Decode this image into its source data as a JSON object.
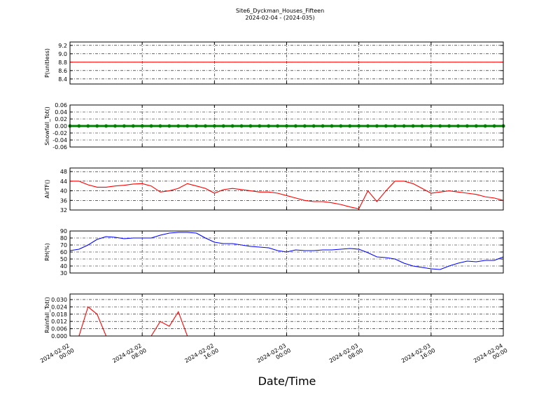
{
  "title": "Site6_Dyckman_Houses_Fifteen",
  "subtitle": "2024-02-04 - (2024-035)",
  "xlabel": "Date/Time",
  "xlim": [
    "2024-02-02 00:00",
    "2024-02-04 00:00"
  ],
  "xticks": [
    "2024-02-02 00:00",
    "2024-02-02 08:00",
    "2024-02-02 16:00",
    "2024-02-03 00:00",
    "2024-02-03 08:00",
    "2024-02-03 16:00",
    "2024-02-04 00:00"
  ],
  "x": [
    "2024-02-02 00:00",
    "2024-02-02 01:00",
    "2024-02-02 02:00",
    "2024-02-02 03:00",
    "2024-02-02 04:00",
    "2024-02-02 05:00",
    "2024-02-02 06:00",
    "2024-02-02 07:00",
    "2024-02-02 08:00",
    "2024-02-02 09:00",
    "2024-02-02 10:00",
    "2024-02-02 11:00",
    "2024-02-02 12:00",
    "2024-02-02 13:00",
    "2024-02-02 14:00",
    "2024-02-02 15:00",
    "2024-02-02 16:00",
    "2024-02-02 17:00",
    "2024-02-02 18:00",
    "2024-02-02 19:00",
    "2024-02-02 20:00",
    "2024-02-02 21:00",
    "2024-02-02 22:00",
    "2024-02-02 23:00",
    "2024-02-03 00:00",
    "2024-02-03 01:00",
    "2024-02-03 02:00",
    "2024-02-03 03:00",
    "2024-02-03 04:00",
    "2024-02-03 05:00",
    "2024-02-03 06:00",
    "2024-02-03 07:00",
    "2024-02-03 08:00",
    "2024-02-03 09:00",
    "2024-02-03 10:00",
    "2024-02-03 11:00",
    "2024-02-03 12:00",
    "2024-02-03 13:00",
    "2024-02-03 14:00",
    "2024-02-03 15:00",
    "2024-02-03 16:00",
    "2024-02-03 17:00",
    "2024-02-03 18:00",
    "2024-02-03 19:00",
    "2024-02-03 20:00",
    "2024-02-03 21:00",
    "2024-02-03 22:00",
    "2024-02-03 23:00",
    "2024-02-04 00:00"
  ],
  "grid": true,
  "chart_data": [
    {
      "type": "line",
      "ylabel": "P(unitless)",
      "ylim": [
        8.28,
        9.28
      ],
      "yticks": [
        8.4,
        8.6,
        8.8,
        {
          "value": 9.0,
          "label": "9.0"
        },
        9.2
      ],
      "series": [
        {
          "color": "#ff0000",
          "values": [
            8.8,
            8.8,
            8.8,
            8.8,
            8.8,
            8.8,
            8.8,
            8.8,
            8.8,
            8.8,
            8.8,
            8.8,
            8.8,
            8.8,
            8.8,
            8.8,
            8.8,
            8.8,
            8.8,
            8.8,
            8.8,
            8.8,
            8.8,
            8.8,
            8.8,
            8.8,
            8.8,
            8.8,
            8.8,
            8.8,
            8.8,
            8.8,
            8.8,
            8.8,
            8.8,
            8.8,
            8.8,
            8.8,
            8.8,
            8.8,
            8.8,
            8.8,
            8.8,
            8.8,
            8.8,
            8.8,
            8.8,
            8.8,
            8.8
          ]
        }
      ]
    },
    {
      "type": "line",
      "markers": true,
      "ylabel": "Snowfall_Tot()",
      "ylim": [
        -0.06,
        0.06
      ],
      "yticks": [
        -0.06,
        -0.04,
        -0.02,
        {
          "value": 0,
          "label": "0.00"
        },
        0.02,
        0.04,
        0.06
      ],
      "series": [
        {
          "color": "#008000",
          "values": [
            0,
            0,
            0,
            0,
            0,
            0,
            0,
            0,
            0,
            0,
            0,
            0,
            0,
            0,
            0,
            0,
            0,
            0,
            0,
            0,
            0,
            0,
            0,
            0,
            0,
            0,
            0,
            0,
            0,
            0,
            0,
            0,
            0,
            0,
            0,
            0,
            0,
            0,
            0,
            0,
            0,
            0,
            0,
            0,
            0,
            0,
            0,
            0,
            0
          ]
        }
      ]
    },
    {
      "type": "line",
      "ylabel": "AirTF()",
      "ylim": [
        32,
        49.5
      ],
      "yticks": [
        32,
        36,
        40,
        44,
        48
      ],
      "series": [
        {
          "color": "#ff0000",
          "values": [
            44,
            44,
            42.5,
            41.5,
            41.5,
            42,
            42.3,
            42.8,
            43,
            42,
            39.5,
            40,
            41,
            43,
            42,
            41,
            39,
            40.5,
            41,
            40.5,
            40,
            39.5,
            39.5,
            39,
            38,
            37,
            36,
            35.5,
            35.5,
            35,
            34.3,
            33.3,
            32.5,
            40,
            35.5,
            40,
            44,
            44,
            43,
            41,
            39,
            39.5,
            40,
            39.5,
            39,
            38.5,
            37.5,
            37,
            36
          ]
        }
      ]
    },
    {
      "type": "line",
      "ylabel": "RH(%)",
      "ylim": [
        30,
        90
      ],
      "yticks": [
        30,
        40,
        50,
        60,
        70,
        80,
        90
      ],
      "series": [
        {
          "color": "#0000ff",
          "values": [
            62,
            64,
            70,
            78,
            82,
            81,
            79,
            80,
            80,
            80,
            84,
            87,
            88,
            88,
            87,
            80,
            74,
            72,
            72,
            70,
            68,
            67,
            66,
            62,
            60,
            63,
            62,
            62,
            63,
            63,
            64,
            65,
            64,
            59,
            53,
            52,
            50,
            44,
            40,
            38,
            36,
            35,
            40,
            44,
            47,
            46,
            48,
            48,
            53
          ]
        }
      ]
    },
    {
      "type": "line",
      "ylabel": "Rainfall_Tot()",
      "ylim": [
        0,
        0.0346
      ],
      "yticks": [
        {
          "value": 0,
          "label": "0.000"
        },
        {
          "value": 0.006,
          "label": "0.006"
        },
        {
          "value": 0.012,
          "label": "0.012"
        },
        {
          "value": 0.018,
          "label": "0.018"
        },
        {
          "value": 0.024,
          "label": "0.024"
        },
        {
          "value": 0.03,
          "label": "0.030"
        }
      ],
      "series": [
        {
          "color": "#ff0000",
          "values": [
            0,
            0,
            0.024,
            0.018,
            0,
            0,
            0,
            0,
            0,
            0,
            0.012,
            0.008,
            0.02,
            0,
            0,
            0,
            0,
            0,
            0,
            0,
            0,
            0,
            0,
            0,
            0,
            0,
            0,
            0,
            0,
            0,
            0,
            0,
            0,
            0,
            0,
            0,
            0,
            0,
            0,
            0,
            0,
            0,
            0,
            0,
            0,
            0,
            0,
            0,
            0
          ]
        }
      ]
    }
  ]
}
